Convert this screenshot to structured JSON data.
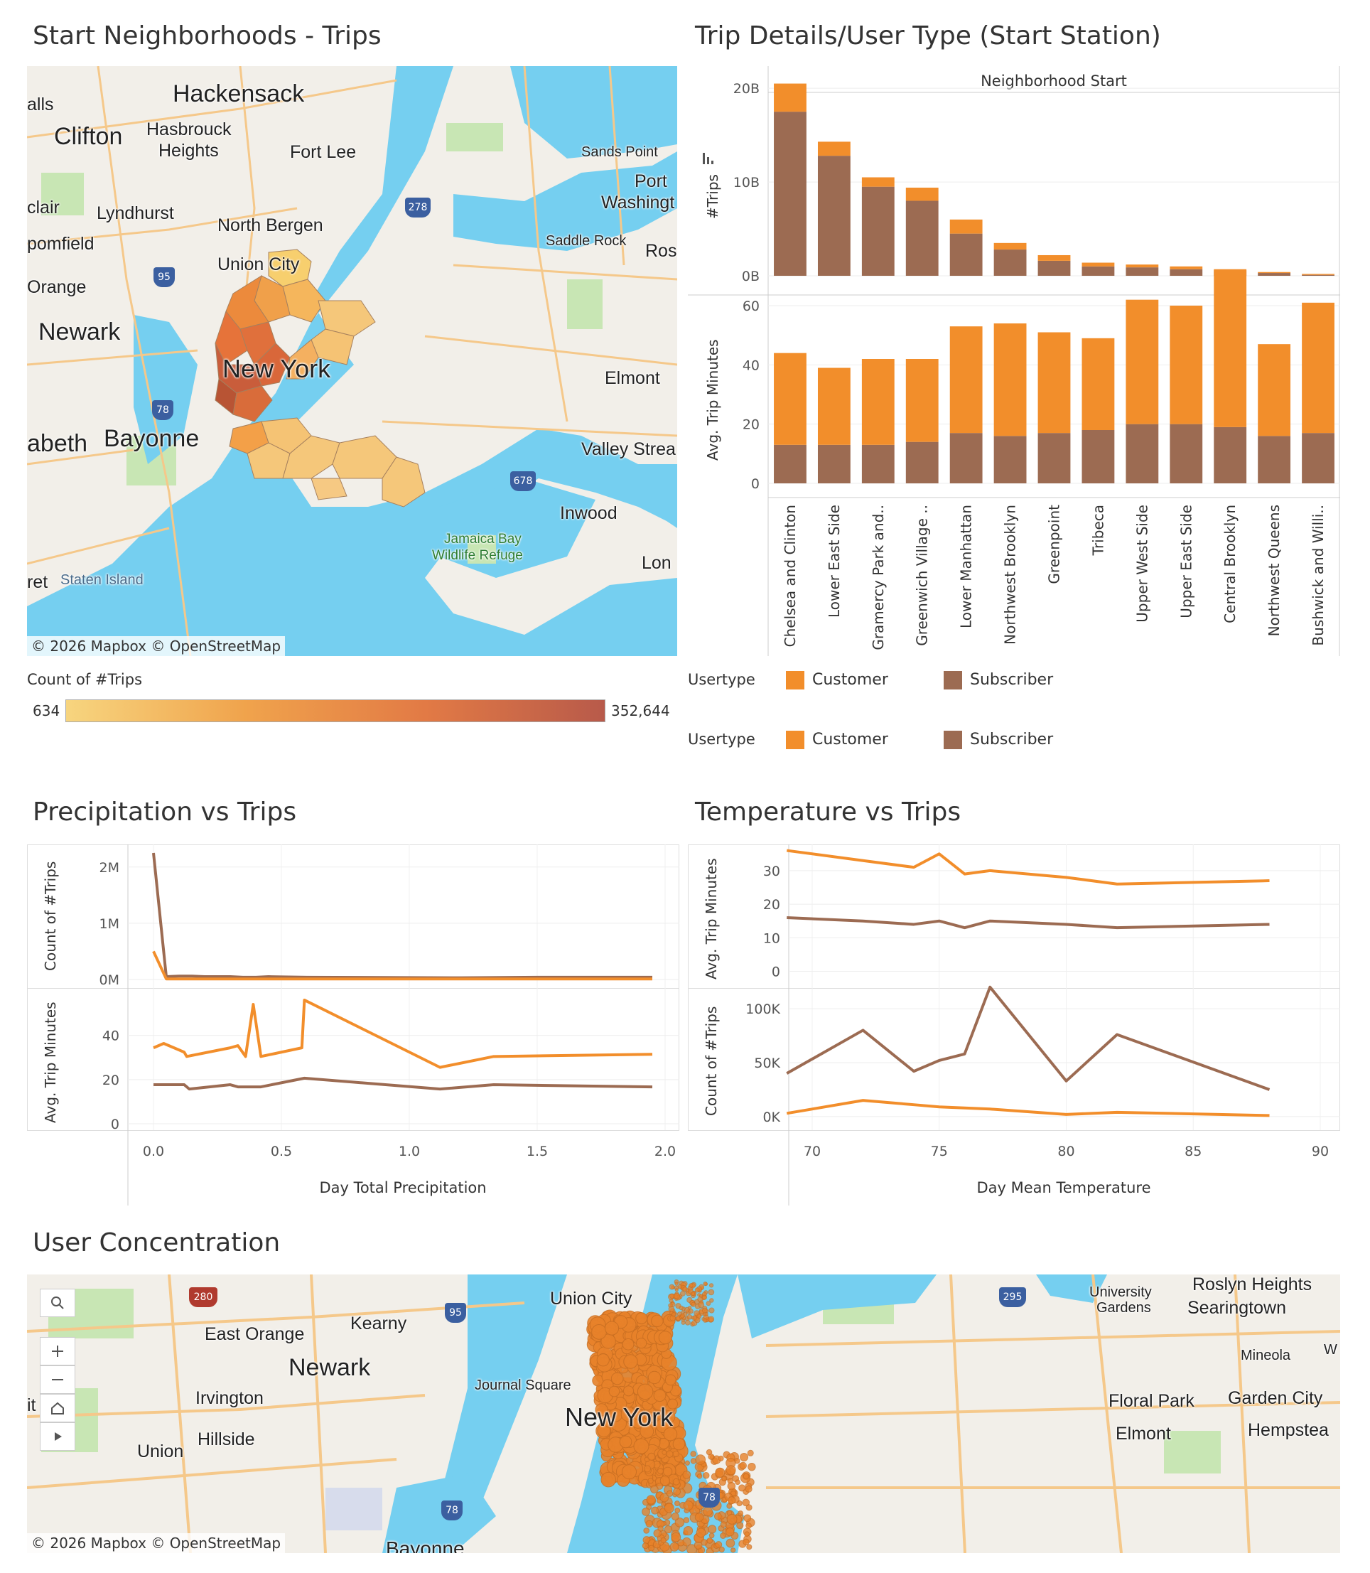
{
  "titles": {
    "neighborhoods": "Start Neighborhoods - Trips",
    "trip_details": "Trip Details/User Type  (Start Station)",
    "precipitation": "Precipitation vs Trips",
    "temperature": "Temperature vs Trips",
    "concentration": "User Concentration"
  },
  "map1": {
    "attribution": "© 2026 Mapbox  © OpenStreetMap",
    "labels": [
      "Hackensack",
      "Clifton",
      "Hasbrouck",
      "Heights",
      "Fort Lee",
      "Sands Point",
      "Port",
      "Washingt",
      "alls",
      "clair",
      "Lyndhurst",
      "North Bergen",
      "pomfield",
      "Union City",
      "Saddle Rock",
      "Ros",
      "Orange",
      "Newark",
      "New York",
      "Elmont",
      "abeth",
      "Bayonne",
      "Valley Strea",
      "Inwood",
      "Jamaica Bay",
      "Wildlife Refuge",
      "ret",
      "Staten Island",
      "Lon"
    ],
    "highway_shields": [
      "95",
      "278",
      "78",
      "678"
    ],
    "legend_title": "Count of #Trips",
    "legend_min": "634",
    "legend_max": "352,644"
  },
  "trip_details": {
    "column_header": "Neighborhood Start",
    "top_axis_label": "#Trips",
    "bottom_axis_label": "Avg. Trip Minutes",
    "top_ticks": [
      "20B",
      "10B",
      "0B"
    ],
    "bottom_ticks": [
      "60",
      "40",
      "20",
      "0"
    ],
    "legend_label": "Usertype",
    "customer_label": "Customer",
    "subscriber_label": "Subscriber"
  },
  "precip": {
    "top_axis_label": "Count of #Trips",
    "bottom_axis_label": "Avg. Trip Minutes",
    "top_ticks": [
      "2M",
      "1M",
      "0M"
    ],
    "bottom_ticks": [
      "40",
      "20",
      "0"
    ],
    "x_ticks": [
      "0.0",
      "0.5",
      "1.0",
      "1.5",
      "2.0"
    ],
    "x_axis_label": "Day Total Precipitation"
  },
  "temp": {
    "top_axis_label": "Avg. Trip Minutes",
    "bottom_axis_label": "Count of #Trips",
    "top_ticks": [
      "30",
      "20",
      "10",
      "0"
    ],
    "bottom_ticks": [
      "100K",
      "50K",
      "0K"
    ],
    "x_ticks": [
      "70",
      "75",
      "80",
      "85",
      "90"
    ],
    "x_axis_label": "Day Mean Temperature"
  },
  "map2": {
    "attribution": "© 2026 Mapbox  © OpenStreetMap",
    "labels": [
      "Roslyn Heights",
      "University",
      "Gardens",
      "Searingtown",
      "East Orange",
      "Kearny",
      "Union City",
      "Mineola",
      "Newark",
      "Irvington",
      "Journal Square",
      "Floral Park",
      "Garden City",
      "New York",
      "Elmont",
      "Hempstea",
      "Union",
      "Hillside",
      "it",
      "W",
      "Bayonne"
    ],
    "highway_shields": [
      "280",
      "95",
      "295",
      "78",
      "78"
    ],
    "controls": [
      "search-icon",
      "zoom-in-icon",
      "zoom-out-icon",
      "home-icon",
      "play-icon"
    ]
  },
  "colors": {
    "customer": "#f28e2b",
    "subscriber": "#9c6b52",
    "water": "#75cff0",
    "land": "#f2efe9",
    "park": "#c8e6b4",
    "road": "#f5c88a"
  },
  "chart_data": [
    {
      "type": "bar",
      "stacked": true,
      "title": "Trip Details/User Type  (Start Station)",
      "xlabel": "Neighborhood Start",
      "ylabel": "#Trips",
      "ylim": [
        0,
        20
      ],
      "categories": [
        "Chelsea and Clinton",
        "Lower East Side",
        "Gramercy Park and..",
        "Greenwich Village ..",
        "Lower Manhattan",
        "Northwest Brooklyn",
        "Greenpoint",
        "Tribeca",
        "Upper West Side",
        "Upper East Side",
        "Central Brooklyn",
        "Northwest Queens",
        "Bushwick and Willi.."
      ],
      "series": [
        {
          "name": "Subscriber",
          "values": [
            17.5,
            12.8,
            9.5,
            8.0,
            4.5,
            2.8,
            1.6,
            1.0,
            0.9,
            0.7,
            0.5,
            0.3,
            0.1
          ]
        },
        {
          "name": "Customer",
          "values": [
            3.0,
            1.5,
            1.0,
            1.4,
            1.5,
            0.7,
            0.6,
            0.4,
            0.3,
            0.3,
            0.2,
            0.1,
            0.1
          ]
        }
      ]
    },
    {
      "type": "bar",
      "stacked": true,
      "ylabel": "Avg. Trip Minutes",
      "ylim": [
        0,
        70
      ],
      "categories": [
        "Chelsea and Clinton",
        "Lower East Side",
        "Gramercy Park and..",
        "Greenwich Village ..",
        "Lower Manhattan",
        "Northwest Brooklyn",
        "Greenpoint",
        "Tribeca",
        "Upper West Side",
        "Upper East Side",
        "Central Brooklyn",
        "Northwest Queens",
        "Bushwick and Willi.."
      ],
      "series": [
        {
          "name": "Subscriber",
          "values": [
            13,
            13,
            13,
            14,
            17,
            16,
            17,
            18,
            20,
            20,
            19,
            16,
            17
          ]
        },
        {
          "name": "Customer",
          "values": [
            31,
            26,
            29,
            28,
            36,
            38,
            34,
            31,
            42,
            40,
            53,
            31,
            44
          ]
        }
      ]
    },
    {
      "type": "line",
      "xlabel": "Day Total Precipitation",
      "ylabel": "Count of #Trips",
      "xlim": [
        0,
        2.0
      ],
      "ylim": [
        0,
        2.3
      ],
      "series": [
        {
          "name": "Subscriber",
          "x": [
            0.0,
            0.05,
            0.1,
            0.15,
            0.2,
            0.3,
            0.35,
            0.4,
            0.45,
            0.6,
            1.2,
            1.5,
            1.95
          ],
          "y": [
            2.25,
            0.05,
            0.06,
            0.06,
            0.05,
            0.05,
            0.04,
            0.04,
            0.05,
            0.04,
            0.03,
            0.04,
            0.04
          ]
        },
        {
          "name": "Customer",
          "x": [
            0.0,
            0.05,
            0.1,
            0.3,
            0.6,
            1.2,
            1.95
          ],
          "y": [
            0.5,
            0.01,
            0.01,
            0.01,
            0.01,
            0.01,
            0.01
          ]
        }
      ]
    },
    {
      "type": "line",
      "ylabel": "Avg. Trip Minutes",
      "xlim": [
        0,
        2.0
      ],
      "ylim": [
        0,
        55
      ],
      "series": [
        {
          "name": "Customer",
          "x": [
            0.0,
            0.04,
            0.12,
            0.13,
            0.3,
            0.33,
            0.36,
            0.39,
            0.42,
            0.58,
            0.59,
            1.12,
            1.33,
            1.95
          ],
          "y": [
            31,
            33,
            29,
            27,
            31,
            32,
            27,
            51,
            27,
            31,
            53,
            22,
            27,
            28
          ]
        },
        {
          "name": "Subscriber",
          "x": [
            0.0,
            0.12,
            0.14,
            0.3,
            0.33,
            0.38,
            0.42,
            0.59,
            1.12,
            1.33,
            1.95
          ],
          "y": [
            14,
            14,
            12,
            14,
            13,
            13,
            13,
            17,
            12,
            14,
            13
          ]
        }
      ]
    },
    {
      "type": "line",
      "xlabel": "Day Mean Temperature",
      "ylabel": "Avg. Trip Minutes",
      "xlim": [
        67,
        90
      ],
      "ylim": [
        0,
        36
      ],
      "series": [
        {
          "name": "Customer",
          "x": [
            69,
            72,
            74,
            75,
            76,
            77,
            80,
            82,
            88
          ],
          "y": [
            36,
            33,
            31,
            35,
            29,
            30,
            28,
            26,
            27
          ]
        },
        {
          "name": "Subscriber",
          "x": [
            69,
            72,
            74,
            75,
            76,
            77,
            80,
            82,
            88
          ],
          "y": [
            16,
            15,
            14,
            15,
            13,
            15,
            14,
            13,
            14
          ]
        }
      ]
    },
    {
      "type": "line",
      "ylabel": "Count of #Trips",
      "xlim": [
        67,
        90
      ],
      "ylim": [
        0,
        110
      ],
      "series": [
        {
          "name": "Subscriber",
          "x": [
            69,
            72,
            74,
            75,
            76,
            77,
            80,
            82,
            88
          ],
          "y": [
            40,
            80,
            42,
            52,
            58,
            120,
            33,
            76,
            25
          ]
        },
        {
          "name": "Customer",
          "x": [
            69,
            72,
            74,
            75,
            76,
            77,
            80,
            82,
            88
          ],
          "y": [
            3,
            15,
            11,
            9,
            8,
            7,
            2,
            4,
            1
          ]
        }
      ]
    }
  ]
}
